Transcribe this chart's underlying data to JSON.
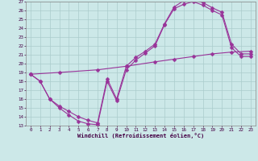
{
  "xlabel": "Windchill (Refroidissement éolien,°C)",
  "xlim": [
    -0.5,
    23.5
  ],
  "ylim": [
    13,
    27
  ],
  "background_color": "#cce8e8",
  "grid_color": "#aacccc",
  "line_color": "#993399",
  "curve1_x": [
    0,
    1,
    2,
    3,
    4,
    5,
    6,
    7,
    8,
    9,
    10,
    11,
    12,
    13,
    14,
    15,
    16,
    17,
    18,
    19,
    20,
    21,
    22,
    23
  ],
  "curve1_y": [
    18.8,
    18.0,
    16.0,
    15.0,
    14.2,
    13.5,
    13.2,
    13.1,
    18.0,
    15.8,
    19.3,
    20.4,
    21.2,
    22.0,
    24.4,
    26.2,
    26.7,
    27.0,
    26.6,
    26.0,
    25.5,
    21.8,
    20.8,
    20.8
  ],
  "curve2_x": [
    0,
    1,
    2,
    3,
    4,
    5,
    6,
    7,
    8,
    9,
    10,
    11,
    12,
    13,
    14,
    15,
    16,
    17,
    18,
    19,
    20,
    21,
    22,
    23
  ],
  "curve2_y": [
    18.8,
    18.0,
    16.0,
    15.2,
    14.6,
    14.0,
    13.6,
    13.3,
    18.3,
    16.0,
    19.7,
    20.7,
    21.4,
    22.2,
    24.5,
    26.4,
    27.1,
    27.2,
    26.9,
    26.3,
    25.8,
    22.2,
    21.1,
    21.1
  ],
  "curve3_x": [
    0,
    3,
    7,
    10,
    13,
    15,
    17,
    19,
    21,
    23
  ],
  "curve3_y": [
    18.8,
    19.0,
    19.3,
    19.7,
    20.2,
    20.5,
    20.8,
    21.1,
    21.3,
    21.4
  ],
  "xtick_labels": [
    "0",
    "1",
    "2",
    "3",
    "4",
    "5",
    "6",
    "7",
    "8",
    "9",
    "10",
    "11",
    "12",
    "13",
    "14",
    "15",
    "16",
    "17",
    "18",
    "19",
    "20",
    "21",
    "22",
    "23"
  ],
  "ytick_labels": [
    "13",
    "14",
    "15",
    "16",
    "17",
    "18",
    "19",
    "20",
    "21",
    "22",
    "23",
    "24",
    "25",
    "26",
    "27"
  ]
}
